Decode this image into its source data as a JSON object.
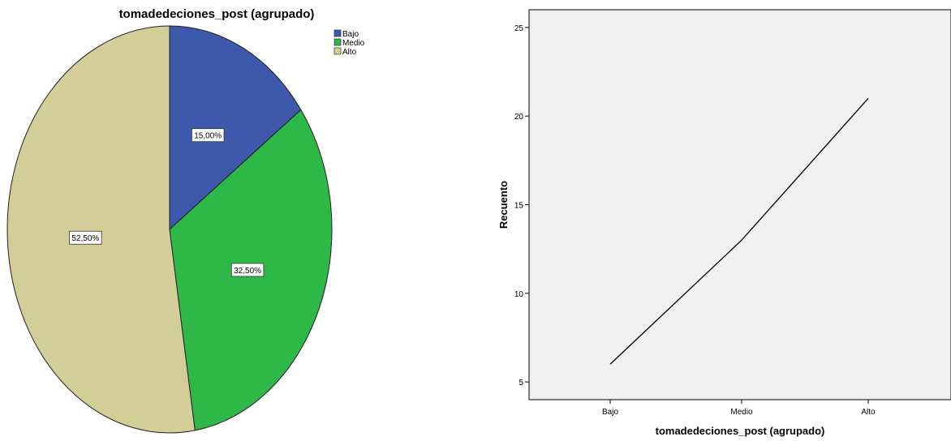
{
  "chart_data": [
    {
      "type": "pie",
      "title": "tomadedeciones_post (agrupado)",
      "categories": [
        "Bajo",
        "Medio",
        "Alto"
      ],
      "values": [
        15.0,
        32.5,
        52.5
      ],
      "value_labels": [
        "15,00%",
        "32,50%",
        "52,50%"
      ],
      "colors": [
        "#3e58ac",
        "#2eb848",
        "#d3ce97"
      ],
      "legend_position": "top-right"
    },
    {
      "type": "line",
      "categories": [
        "Bajo",
        "Medio",
        "Alto"
      ],
      "values": [
        6,
        13,
        21
      ],
      "xlabel": "tomadedeciones_post (agrupado)",
      "ylabel": "Recuento",
      "ylim": [
        4,
        26
      ],
      "yticks": [
        "5",
        "10",
        "15",
        "20",
        "25"
      ],
      "ytick_values": [
        5,
        10,
        15,
        20,
        25
      ],
      "background": "#f0f0f0",
      "line_color": "#000000",
      "grid": false
    }
  ]
}
